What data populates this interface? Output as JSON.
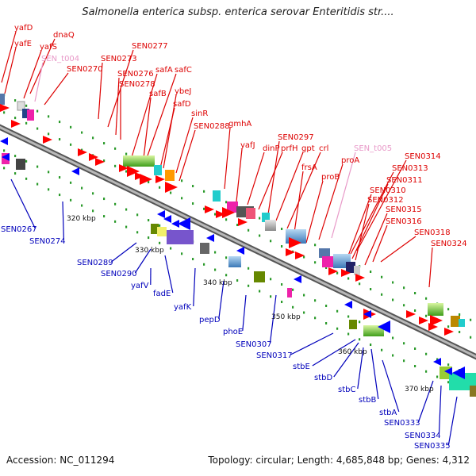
{
  "header": {
    "title": "Salmonella enterica subsp. enterica serovar Enteritidis str...."
  },
  "footer": {
    "accession": "Accession: NC_011294",
    "topology": "Topology: circular; Length: 4,685,848 bp; Genes: 4,312"
  },
  "colors": {
    "forward_label": "#dd0000",
    "reverse_label": "#0000bb",
    "rna_label": "#e899c8",
    "backbone": "#888888",
    "forward_arrow": "#ff0000",
    "reverse_arrow": "#0000ff",
    "dot": "#2a9a2a"
  },
  "ticks": [
    {
      "label": "320 kbp"
    },
    {
      "label": "330 kbp"
    },
    {
      "label": "340 kbp"
    },
    {
      "label": "350 kbp"
    },
    {
      "label": "360 kbp"
    },
    {
      "label": "370 kbp"
    }
  ],
  "forward_labels": [
    "yafD",
    "yafE",
    "dnaQ",
    "yafS",
    "SEN_t004",
    "SEN0270",
    "SEN0273",
    "SEN0277",
    "SEN0276",
    "SEN0278",
    "safA",
    "safC",
    "safB",
    "ybeJ",
    "safD",
    "sinR",
    "SEN0288",
    "gmhA",
    "yafJ",
    "dinP",
    "prfH",
    "SEN0297",
    "gpt",
    "crl",
    "frsA",
    "SEN_t005",
    "proA",
    "proB",
    "SEN0314",
    "SEN0313",
    "SEN0311",
    "SEN0310",
    "SEN0312",
    "SEN0315",
    "SEN0316",
    "SEN0318",
    "SEN0324"
  ],
  "reverse_labels": [
    "SEN0267",
    "SEN0274",
    "SEN0289",
    "SEN0290",
    "yafV",
    "fadE",
    "yafK",
    "pepD",
    "phoE",
    "SEN0307",
    "SEN0317",
    "stbE",
    "stbD",
    "stbC",
    "stbB",
    "stbA",
    "SEN0333",
    "SEN0334",
    "SEN0335"
  ]
}
